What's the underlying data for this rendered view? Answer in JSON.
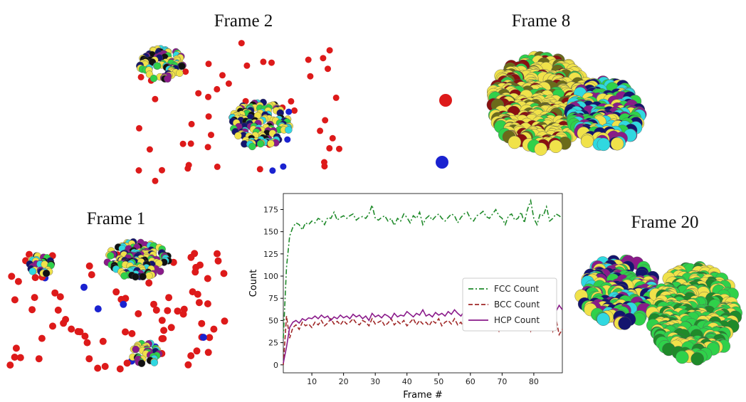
{
  "panels": [
    {
      "title": "Frame 2"
    },
    {
      "title": "Frame 8"
    },
    {
      "title": "Frame 1"
    },
    {
      "title": "Frame 20"
    }
  ],
  "chart_data": {
    "type": "line",
    "xlabel": "Frame #",
    "ylabel": "Count",
    "x": [
      1,
      2,
      3,
      4,
      5,
      6,
      7,
      8,
      9,
      10,
      11,
      12,
      13,
      14,
      15,
      16,
      17,
      18,
      19,
      20,
      21,
      22,
      23,
      24,
      25,
      26,
      27,
      28,
      29,
      30,
      31,
      32,
      33,
      34,
      35,
      36,
      37,
      38,
      39,
      40,
      41,
      42,
      43,
      44,
      45,
      46,
      47,
      48,
      49,
      50,
      51,
      52,
      53,
      54,
      55,
      56,
      57,
      58,
      59,
      60,
      61,
      62,
      63,
      64,
      65,
      66,
      67,
      68,
      69,
      70,
      71,
      72,
      73,
      74,
      75,
      76,
      77,
      78,
      79,
      80,
      81,
      82,
      83,
      84,
      85,
      86,
      87,
      88,
      89
    ],
    "series": [
      {
        "name": "FCC Count",
        "color": "#1f8a2a",
        "linestyle": "dashdot",
        "values": [
          30,
          110,
          145,
          155,
          160,
          158,
          152,
          160,
          158,
          162,
          160,
          165,
          163,
          158,
          166,
          165,
          172,
          163,
          166,
          168,
          165,
          168,
          170,
          163,
          166,
          167,
          165,
          170,
          180,
          165,
          163,
          166,
          168,
          162,
          165,
          157,
          165,
          162,
          170,
          166,
          160,
          168,
          165,
          172,
          158,
          165,
          168,
          163,
          167,
          170,
          165,
          162,
          166,
          170,
          168,
          160,
          166,
          170,
          172,
          165,
          162,
          168,
          170,
          173,
          167,
          165,
          170,
          175,
          168,
          165,
          158,
          168,
          170,
          163,
          165,
          172,
          160,
          175,
          185,
          165,
          158,
          170,
          168,
          178,
          162,
          165,
          170,
          168,
          165
        ]
      },
      {
        "name": "BCC Count",
        "color": "#a02828",
        "linestyle": "dashed",
        "values": [
          0,
          55,
          30,
          42,
          45,
          40,
          48,
          44,
          46,
          42,
          48,
          45,
          50,
          44,
          47,
          52,
          46,
          49,
          45,
          50,
          46,
          48,
          52,
          47,
          45,
          50,
          48,
          44,
          52,
          46,
          48,
          50,
          44,
          47,
          52,
          45,
          49,
          46,
          50,
          44,
          48,
          52,
          45,
          50,
          46,
          48,
          44,
          50,
          47,
          52,
          44,
          48,
          50,
          46,
          52,
          45,
          48,
          42,
          50,
          47,
          40,
          52,
          44,
          48,
          50,
          42,
          55,
          45,
          38,
          50,
          46,
          52,
          40,
          48,
          55,
          42,
          50,
          45,
          38,
          52,
          45,
          40,
          55,
          42,
          50,
          38,
          52,
          34,
          40
        ]
      },
      {
        "name": "HCP Count",
        "color": "#8a1a8a",
        "linestyle": "solid",
        "values": [
          2,
          20,
          42,
          48,
          50,
          47,
          52,
          50,
          53,
          52,
          55,
          52,
          56,
          53,
          55,
          50,
          54,
          52,
          56,
          53,
          55,
          52,
          57,
          54,
          56,
          52,
          55,
          50,
          58,
          54,
          56,
          53,
          57,
          55,
          52,
          58,
          54,
          56,
          55,
          60,
          57,
          54,
          58,
          56,
          62,
          55,
          57,
          54,
          59,
          56,
          58,
          55,
          60,
          57,
          62,
          58,
          55,
          60,
          57,
          61,
          58,
          62,
          60,
          57,
          63,
          59,
          61,
          58,
          62,
          60,
          58,
          62,
          60,
          63,
          59,
          61,
          64,
          58,
          62,
          60,
          63,
          59,
          61,
          64,
          58,
          62,
          60,
          67,
          62
        ]
      }
    ],
    "xlim": [
      1,
      89
    ],
    "ylim": [
      -9,
      193
    ],
    "xticks": [
      10,
      20,
      30,
      40,
      50,
      60,
      70,
      80
    ],
    "yticks": [
      0,
      25,
      50,
      75,
      100,
      125,
      150,
      175
    ],
    "legend": "center right"
  }
}
